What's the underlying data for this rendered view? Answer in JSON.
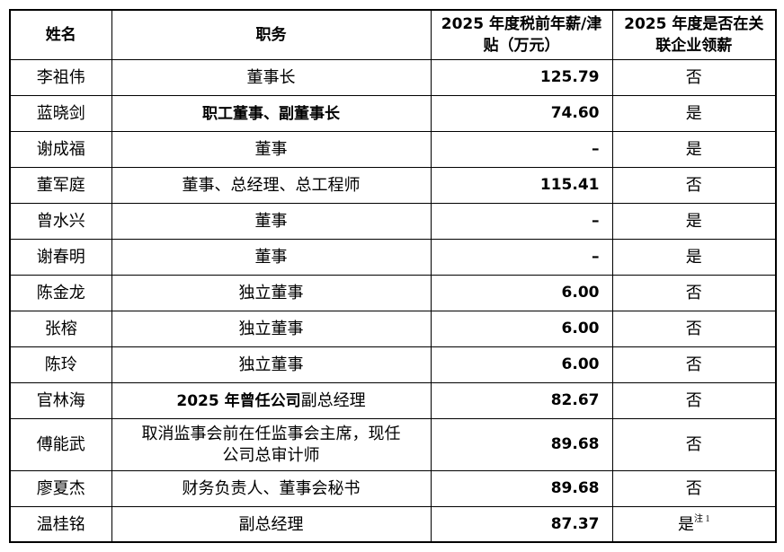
{
  "table": {
    "header": [
      "姓名",
      "职务",
      "2025 年度税前年薪/津贴（万元）",
      "2025 年度是否在关联企业领薪"
    ],
    "rows": [
      [
        "李祖伟",
        "董事长",
        "125.79",
        "否"
      ],
      [
        "蓝晓剑",
        "职工董事、副董事长",
        "74.60",
        "是"
      ],
      [
        "谢成福",
        "董事",
        "–",
        "是"
      ],
      [
        "董军庭",
        "董事、总经理、总工程师",
        "115.41",
        "否"
      ],
      [
        "曾水兴",
        "董事",
        "–",
        "是"
      ],
      [
        "谢春明",
        "董事",
        "–",
        "是"
      ],
      [
        "陈金龙",
        "独立董事",
        "6.00",
        "否"
      ],
      [
        "张榕",
        "独立董事",
        "6.00",
        "否"
      ],
      [
        "陈玲",
        "独立董事",
        "6.00",
        "否"
      ],
      [
        "官林海",
        [
          "2025 年曾任公司",
          "副总经理"
        ],
        "82.67",
        "否"
      ],
      [
        "傅能武",
        "取消监事会前在任监事会主席，现任公司总审计师",
        "89.68",
        "否"
      ],
      [
        "廖夏杰",
        "财务负责人、董事会秘书",
        "89.68",
        "否"
      ],
      [
        "温桂铭",
        "副总经理",
        "87.37",
        [
          "是",
          "注 1"
        ]
      ]
    ]
  }
}
